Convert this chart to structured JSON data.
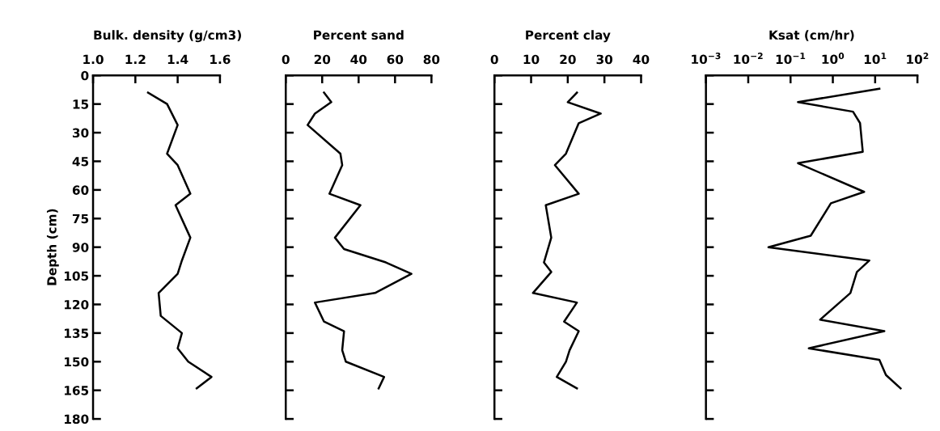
{
  "chart_data": [
    {
      "type": "line",
      "title": "Bulk. density (g/cm3)",
      "ylabel": "Depth (cm)",
      "xlim": [
        1.0,
        1.6
      ],
      "xticks": [
        {
          "value": 1.0,
          "label": "1.0"
        },
        1.2,
        1.4,
        1.6
      ],
      "ylim": [
        180,
        0
      ],
      "yticks": [
        0,
        15,
        30,
        45,
        60,
        75,
        90,
        105,
        120,
        135,
        150,
        165,
        180
      ],
      "series": [
        {
          "color": "#000000",
          "x": [
            1.26,
            1.35,
            1.4,
            1.35,
            1.4,
            1.46,
            1.39,
            1.46,
            1.42,
            1.4,
            1.31,
            1.32,
            1.42,
            1.4,
            1.45,
            1.56,
            1.49
          ],
          "values": [
            9,
            15,
            26,
            41,
            47,
            62,
            68,
            85,
            97,
            104,
            114,
            126,
            135,
            143,
            150,
            158,
            164
          ]
        }
      ]
    },
    {
      "type": "line",
      "title": "Percent sand",
      "xlim": [
        0,
        80
      ],
      "xticks": [
        0,
        20,
        40,
        60,
        80
      ],
      "ylim": [
        180,
        0
      ],
      "yticks": [
        0,
        15,
        30,
        45,
        60,
        75,
        90,
        105,
        120,
        135,
        150,
        165,
        180
      ],
      "tick_labels": "x",
      "series": [
        {
          "color": "#000000",
          "x": [
            21,
            25,
            16,
            12,
            30,
            31,
            24,
            41,
            27,
            32,
            55,
            69,
            49,
            16,
            21,
            32,
            31,
            33,
            54,
            51
          ],
          "values": [
            9,
            14,
            20,
            26,
            41,
            47,
            62,
            68,
            85,
            91,
            98,
            104,
            114,
            119,
            129,
            134,
            144,
            150,
            158,
            164
          ]
        }
      ]
    },
    {
      "type": "line",
      "title": "Percent clay",
      "xlim": [
        0,
        40
      ],
      "xticks": [
        0,
        10,
        20,
        30,
        40
      ],
      "ylim": [
        180,
        0
      ],
      "yticks": [
        0,
        15,
        30,
        45,
        60,
        75,
        90,
        105,
        120,
        135,
        150,
        165,
        180
      ],
      "tick_labels": "x",
      "series": [
        {
          "color": "#000000",
          "x": [
            22.5,
            20,
            29,
            23,
            19.5,
            16.5,
            23,
            14,
            15.5,
            13.5,
            15.5,
            10.5,
            22.5,
            19,
            23,
            20.5,
            19.5,
            17,
            22.5
          ],
          "values": [
            9,
            14,
            20,
            25,
            41,
            47,
            62,
            68,
            85,
            98,
            103,
            114,
            119,
            129,
            134,
            144,
            150,
            158,
            164
          ]
        }
      ]
    },
    {
      "type": "line",
      "title": "Ksat (cm/hr)",
      "log": "x",
      "xlim": [
        0.001,
        100
      ],
      "xticks": [
        {
          "value": 0.001,
          "label": "10$^{−3}$"
        },
        {
          "value": 0.01,
          "label": "10$^{−2}$"
        },
        {
          "value": 0.1,
          "label": "10$^{−1}$"
        },
        {
          "value": 1,
          "label": "10$^{0}$"
        },
        {
          "value": 10,
          "label": "10$^{1}$"
        },
        {
          "value": 100,
          "label": "10$^{2}$"
        }
      ],
      "ylim": [
        180,
        0
      ],
      "yticks": [
        0,
        15,
        30,
        45,
        60,
        75,
        90,
        105,
        120,
        135,
        150,
        165,
        180
      ],
      "tick_labels": "x",
      "series": [
        {
          "color": "#000000",
          "x": [
            12.6,
            0.15,
            3,
            4.4,
            5.1,
            0.15,
            5.5,
            0.9,
            0.3,
            0.03,
            7.3,
            3.7,
            2.6,
            0.5,
            16.5,
            0.27,
            12.6,
            18,
            40
          ],
          "values": [
            7,
            14,
            19,
            25,
            40,
            46,
            61,
            67,
            84,
            90,
            97,
            103,
            114,
            128,
            134,
            143,
            149,
            157,
            164
          ]
        }
      ]
    }
  ]
}
